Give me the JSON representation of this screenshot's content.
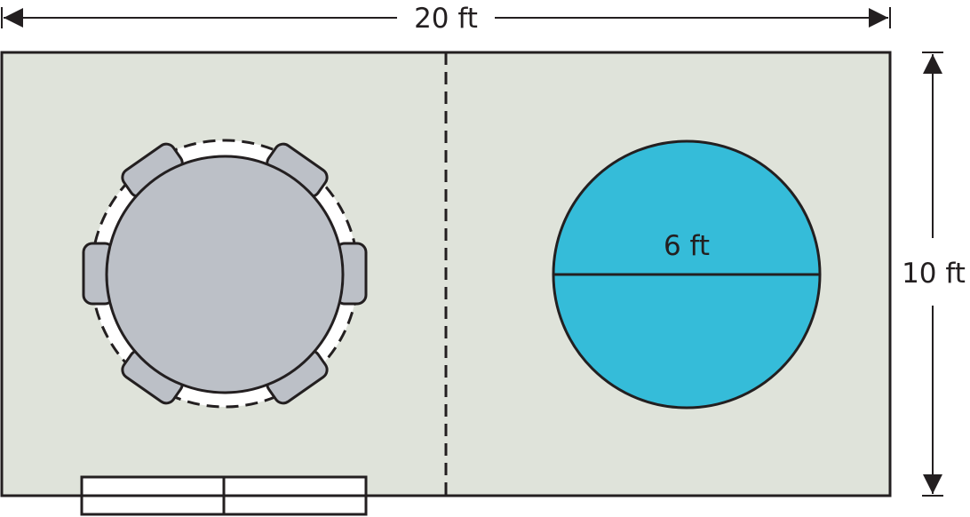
{
  "diagram": {
    "width_label": "20 ft",
    "height_label": "10 ft",
    "diameter_label": "6 ft"
  },
  "colors": {
    "floor": "#dfe3da",
    "outline": "#231f20",
    "table": "#bcc0c7",
    "chair": "#bcc0c7",
    "pool": "#35bcd9",
    "background": "#ffffff"
  }
}
